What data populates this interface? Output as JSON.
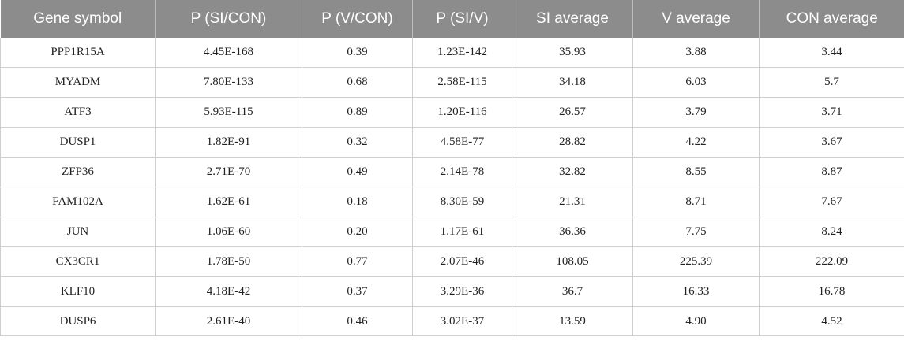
{
  "table": {
    "headers": [
      "Gene symbol",
      "P (SI/CON)",
      "P (V/CON)",
      "P (SI/V)",
      "SI average",
      "V average",
      "CON average"
    ],
    "rows": [
      [
        "PPP1R15A",
        "4.45E-168",
        "0.39",
        "1.23E-142",
        "35.93",
        "3.88",
        "3.44"
      ],
      [
        "MYADM",
        "7.80E-133",
        "0.68",
        "2.58E-115",
        "34.18",
        "6.03",
        "5.7"
      ],
      [
        "ATF3",
        "5.93E-115",
        "0.89",
        "1.20E-116",
        "26.57",
        "3.79",
        "3.71"
      ],
      [
        "DUSP1",
        "1.82E-91",
        "0.32",
        "4.58E-77",
        "28.82",
        "4.22",
        "3.67"
      ],
      [
        "ZFP36",
        "2.71E-70",
        "0.49",
        "2.14E-78",
        "32.82",
        "8.55",
        "8.87"
      ],
      [
        "FAM102A",
        "1.62E-61",
        "0.18",
        "8.30E-59",
        "21.31",
        "8.71",
        "7.67"
      ],
      [
        "JUN",
        "1.06E-60",
        "0.20",
        "1.17E-61",
        "36.36",
        "7.75",
        "8.24"
      ],
      [
        "CX3CR1",
        "1.78E-50",
        "0.77",
        "2.07E-46",
        "108.05",
        "225.39",
        "222.09"
      ],
      [
        "KLF10",
        "4.18E-42",
        "0.37",
        "3.29E-36",
        "36.7",
        "16.33",
        "16.78"
      ],
      [
        "DUSP6",
        "2.61E-40",
        "0.46",
        "3.02E-37",
        "13.59",
        "4.90",
        "4.52"
      ]
    ]
  }
}
